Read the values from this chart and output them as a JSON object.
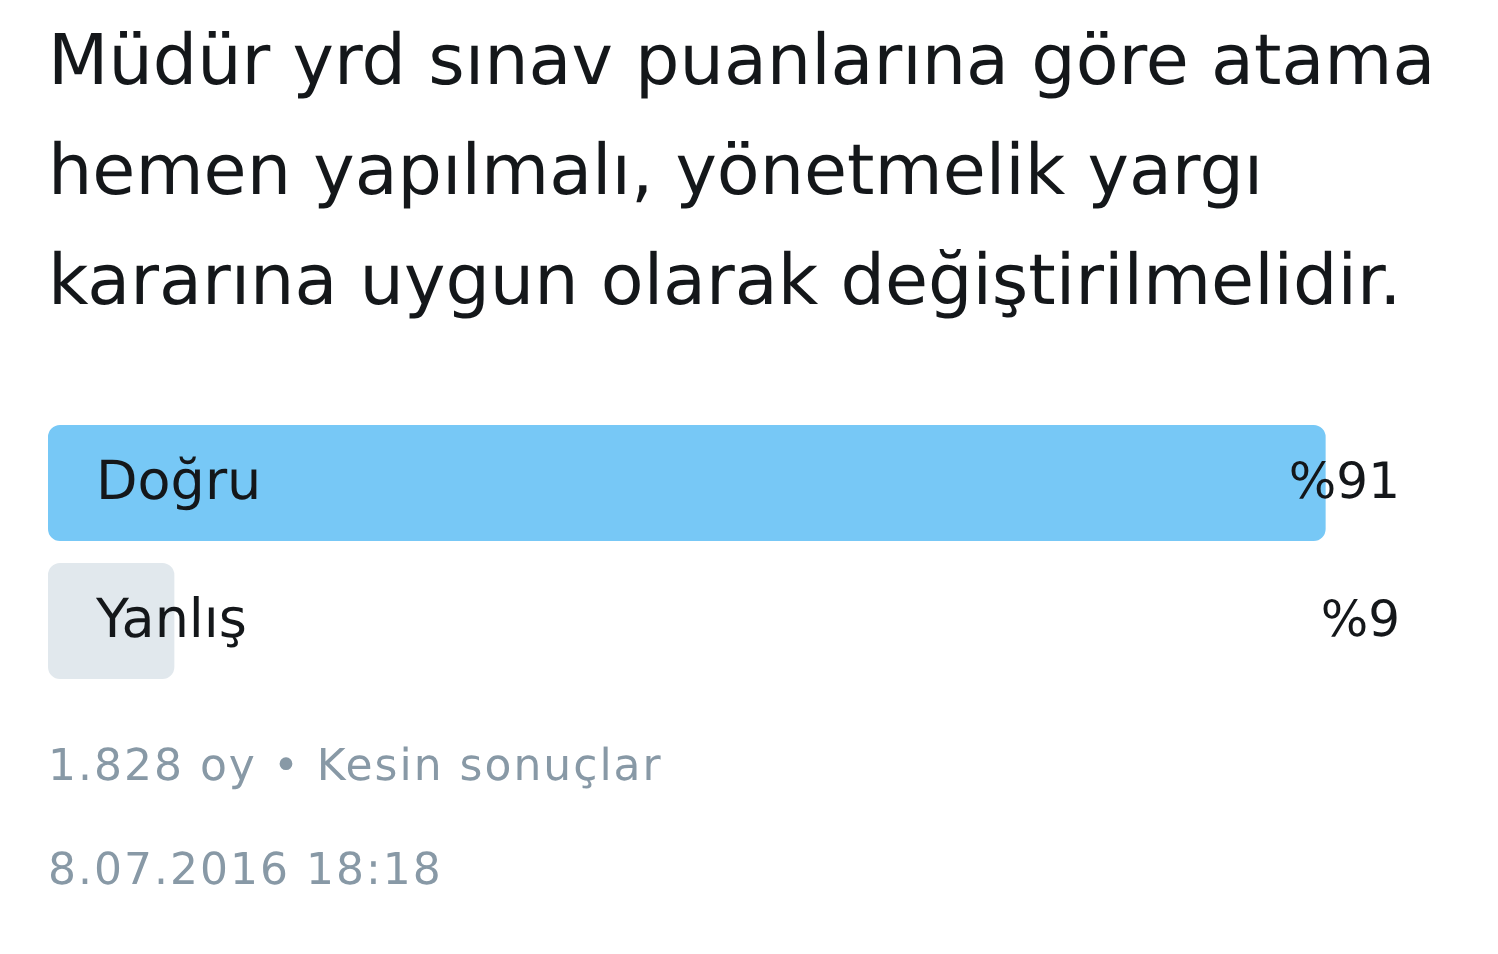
{
  "chart_data": {
    "type": "bar",
    "orientation": "horizontal",
    "title": "Müdür yrd sınav puanlarına göre atama hemen yapılmalı, yönetmelik yargı kararına uygun olarak değiştirilmelidir.",
    "categories": [
      "Doğru",
      "Yanlış"
    ],
    "values": [
      91,
      9
    ],
    "value_labels": [
      "%91",
      "%9"
    ],
    "colors": [
      "#77c8f6",
      "#e1e8ed"
    ],
    "tick_labels": "y",
    "annotations": [
      "1.828 oy • Kesin sonuçlar",
      "8.07.2016 18:18"
    ]
  }
}
